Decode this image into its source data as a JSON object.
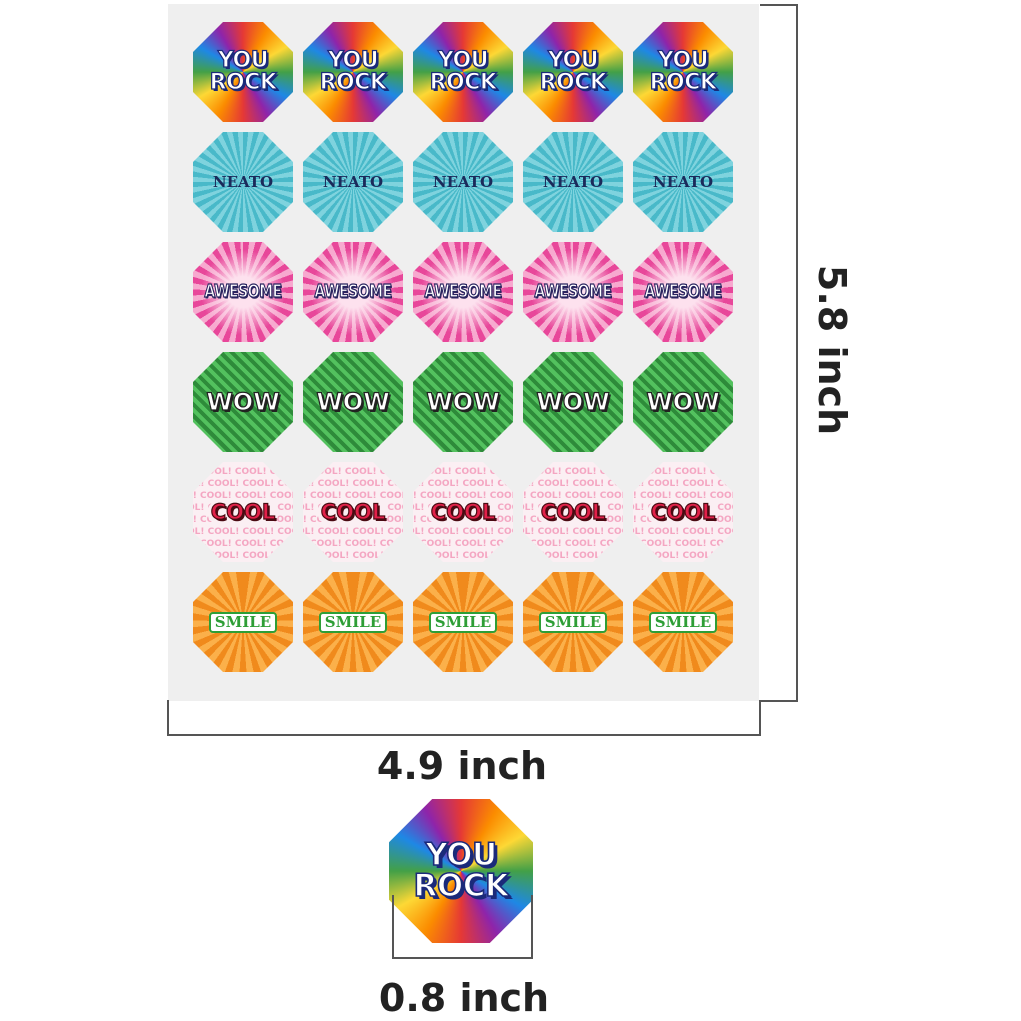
{
  "rows": [
    {
      "style": "rock",
      "label": "YOU ROCK",
      "lines": [
        "YOU",
        "ROCK"
      ]
    },
    {
      "style": "neato",
      "label": "NEATO",
      "lines": [
        "NEATO"
      ]
    },
    {
      "style": "awesome",
      "label": "AWESOME",
      "lines": [
        "AWESOME"
      ]
    },
    {
      "style": "wow",
      "label": "WOW",
      "lines": [
        "WOW"
      ]
    },
    {
      "style": "cool",
      "label": "COOL",
      "lines": [
        "COOL"
      ],
      "pattern": "COOL!"
    },
    {
      "style": "smile",
      "label": "SMILE",
      "lines": [
        "SMILE"
      ]
    }
  ],
  "columns": 5,
  "dimensions": {
    "width_label": "4.9 inch",
    "height_label": "5.8 inch",
    "single_label": "0.8 inch"
  },
  "sample_sticker": {
    "style": "rock",
    "lines": [
      "YOU",
      "ROCK"
    ]
  },
  "colors": {
    "sheet": "#efefef",
    "rock_text": "#1b2a7a",
    "neato": "#49b9c9",
    "awesome": "#e8479a",
    "wow": "#2e8b3a",
    "cool": "#e2214a",
    "smile": "#f08a1c"
  }
}
